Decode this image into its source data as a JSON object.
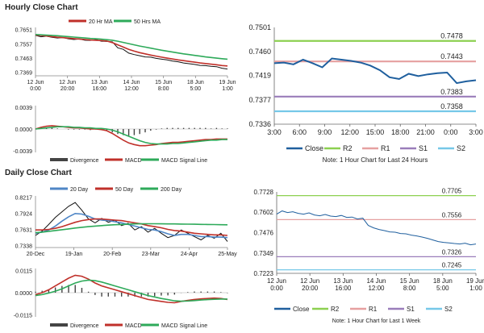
{
  "sections": {
    "hourly_title": "Hourly Close Chart",
    "daily_title": "Daily Close Chart"
  },
  "colors": {
    "close": "#1f5f9e",
    "r2": "#8cd050",
    "r1": "#e6a0a0",
    "s1": "#9a7dba",
    "s2": "#76c8e8",
    "ma_short": "#c0302a",
    "ma_long": "#2eaa5a",
    "ma_20day": "#4f86c6",
    "price": "#111111",
    "divergence": "#444444"
  },
  "chart_data": [
    {
      "id": "hourly-price",
      "type": "line",
      "legend": [
        "20 Hr MA",
        "50 Hrs MA"
      ],
      "y_ticks": [
        "0.7651",
        "0.7557",
        "0.7463",
        "0.7369"
      ],
      "ylim": [
        0.7345,
        0.7665
      ],
      "x_ticks": [
        "12 Jun\n0:00",
        "12 Jun\n20:00",
        "13 Jun\n16:00",
        "14 Jun\n12:00",
        "15 Jun\n8:00",
        "18 Jun\n5:00",
        "19 Jun\n1:00"
      ],
      "series": [
        {
          "name": "Price",
          "values": [
            0.7612,
            0.7603,
            0.7607,
            0.76,
            0.7595,
            0.7598,
            0.759,
            0.7585,
            0.7588,
            0.758,
            0.7579,
            0.7585,
            0.7574,
            0.7572,
            0.757,
            0.753,
            0.752,
            0.7495,
            0.7485,
            0.7478,
            0.747,
            0.7468,
            0.746,
            0.7455,
            0.745,
            0.7442,
            0.7438,
            0.743,
            0.7425,
            0.742,
            0.7414,
            0.7412,
            0.7408,
            0.7405,
            0.7395,
            0.739
          ]
        },
        {
          "name": "20 Hr MA",
          "values": [
            0.7615,
            0.7612,
            0.7608,
            0.7604,
            0.76,
            0.7597,
            0.7594,
            0.7591,
            0.7588,
            0.7585,
            0.7582,
            0.758,
            0.7578,
            0.7575,
            0.7565,
            0.755,
            0.7535,
            0.752,
            0.7508,
            0.7498,
            0.749,
            0.7482,
            0.7475,
            0.7468,
            0.7462,
            0.7456,
            0.745,
            0.7445,
            0.744,
            0.7435,
            0.743,
            0.7426,
            0.7422,
            0.7418,
            0.7413,
            0.741
          ]
        },
        {
          "name": "50 Hrs MA",
          "values": [
            0.7618,
            0.7616,
            0.7614,
            0.7612,
            0.761,
            0.7607,
            0.7604,
            0.7601,
            0.7598,
            0.7595,
            0.7592,
            0.759,
            0.7587,
            0.7584,
            0.758,
            0.7574,
            0.7566,
            0.7558,
            0.755,
            0.7542,
            0.7535,
            0.7528,
            0.7521,
            0.7514,
            0.7508,
            0.7502,
            0.7496,
            0.749,
            0.7485,
            0.748,
            0.7475,
            0.747,
            0.7466,
            0.7462,
            0.7458,
            0.7455
          ]
        }
      ]
    },
    {
      "id": "hourly-macd",
      "type": "line",
      "legend": [
        "Divergence",
        "MACD",
        "MACD Signal Line"
      ],
      "y_ticks": [
        "0.0039",
        "0.0000",
        "-0.0039"
      ],
      "ylim": [
        -0.0042,
        0.0042
      ],
      "series": [
        {
          "name": "MACD",
          "values": [
            0.0,
            0.0003,
            0.0005,
            0.0006,
            0.0005,
            0.0004,
            0.0003,
            0.0002,
            0.0002,
            0.0001,
            0.0,
            0.0,
            -0.0001,
            -0.0003,
            -0.0008,
            -0.0014,
            -0.002,
            -0.0025,
            -0.0028,
            -0.003,
            -0.003,
            -0.0029,
            -0.0028,
            -0.0026,
            -0.0025,
            -0.0024,
            -0.0024,
            -0.0023,
            -0.0022,
            -0.0021,
            -0.002,
            -0.0019,
            -0.0019,
            -0.0018,
            -0.0018,
            -0.0018
          ]
        },
        {
          "name": "MACD Signal Line",
          "values": [
            0.0,
            0.0001,
            0.0002,
            0.0003,
            0.0004,
            0.0004,
            0.0004,
            0.0003,
            0.0003,
            0.0002,
            0.0002,
            0.0001,
            0.0001,
            0.0,
            -0.0002,
            -0.0005,
            -0.0009,
            -0.0013,
            -0.0017,
            -0.0021,
            -0.0024,
            -0.0026,
            -0.0027,
            -0.0027,
            -0.0027,
            -0.0026,
            -0.0026,
            -0.0025,
            -0.0024,
            -0.0023,
            -0.0022,
            -0.0021,
            -0.002,
            -0.002,
            -0.0019,
            -0.0019
          ]
        }
      ]
    },
    {
      "id": "hourly-levels",
      "type": "line",
      "y_ticks": [
        "0.7501",
        "0.7460",
        "0.7419",
        "0.7377",
        "0.7336"
      ],
      "ylim": [
        0.7336,
        0.7501
      ],
      "x_ticks": [
        "3:00",
        "6:00",
        "9:00",
        "12:00",
        "15:00",
        "18:00",
        "21:00",
        "0:00",
        "3:00"
      ],
      "levels": [
        {
          "name": "R2",
          "value": 0.7478,
          "label": "0.7478"
        },
        {
          "name": "R1",
          "value": 0.7443,
          "label": "0.7443"
        },
        {
          "name": "S1",
          "value": 0.7383,
          "label": "0.7383"
        },
        {
          "name": "S2",
          "value": 0.7358,
          "label": "0.7358"
        }
      ],
      "series": [
        {
          "name": "Close",
          "values": [
            0.744,
            0.7441,
            0.7438,
            0.7446,
            0.744,
            0.7433,
            0.7448,
            0.7446,
            0.7444,
            0.7441,
            0.7436,
            0.7428,
            0.7416,
            0.7413,
            0.7422,
            0.7418,
            0.7421,
            0.7423,
            0.7424,
            0.7406,
            0.7409,
            0.7411
          ]
        }
      ],
      "legend": [
        "Close",
        "R2",
        "R1",
        "S1",
        "S2"
      ],
      "note": "Note: 1 Hour Chart for Last 24 Hours"
    },
    {
      "id": "daily-price",
      "type": "line",
      "legend": [
        "20 Day",
        "50 Day",
        "200 Day"
      ],
      "y_ticks": [
        "0.8217",
        "0.7924",
        "0.7631",
        "0.7338"
      ],
      "ylim": [
        0.73,
        0.824
      ],
      "x_ticks": [
        "20-Dec",
        "19-Jan",
        "20-Feb",
        "23-Mar",
        "24-Apr",
        "25-May"
      ],
      "series": [
        {
          "name": "Price",
          "values": [
            0.752,
            0.76,
            0.772,
            0.785,
            0.795,
            0.805,
            0.812,
            0.798,
            0.782,
            0.775,
            0.783,
            0.776,
            0.78,
            0.77,
            0.774,
            0.762,
            0.768,
            0.758,
            0.765,
            0.756,
            0.748,
            0.752,
            0.762,
            0.756,
            0.75,
            0.744,
            0.752,
            0.747,
            0.756,
            0.741
          ]
        },
        {
          "name": "20 Day",
          "values": [
            0.756,
            0.758,
            0.762,
            0.769,
            0.778,
            0.786,
            0.792,
            0.791,
            0.787,
            0.782,
            0.78,
            0.779,
            0.777,
            0.775,
            0.772,
            0.769,
            0.766,
            0.763,
            0.762,
            0.759,
            0.755,
            0.752,
            0.754,
            0.754,
            0.752,
            0.75,
            0.75,
            0.749,
            0.749,
            0.748
          ]
        },
        {
          "name": "50 Day",
          "values": [
            0.762,
            0.762,
            0.763,
            0.765,
            0.768,
            0.772,
            0.776,
            0.779,
            0.781,
            0.782,
            0.782,
            0.781,
            0.78,
            0.779,
            0.777,
            0.775,
            0.773,
            0.77,
            0.768,
            0.766,
            0.763,
            0.761,
            0.76,
            0.758,
            0.756,
            0.755,
            0.754,
            0.753,
            0.753,
            0.752
          ]
        },
        {
          "name": "200 Day",
          "values": [
            0.757,
            0.758,
            0.7595,
            0.761,
            0.7625,
            0.764,
            0.7655,
            0.7668,
            0.768,
            0.769,
            0.77,
            0.7708,
            0.7715,
            0.772,
            0.7725,
            0.773,
            0.7732,
            0.7733,
            0.7733,
            0.7732,
            0.7731,
            0.773,
            0.7728,
            0.7726,
            0.7724,
            0.7722,
            0.772,
            0.7718,
            0.7716,
            0.7714
          ]
        }
      ]
    },
    {
      "id": "daily-macd",
      "type": "line",
      "legend": [
        "Divergence",
        "MACD",
        "MACD Signal Line"
      ],
      "y_ticks": [
        "0.0115",
        "0.0000",
        "-0.0115"
      ],
      "ylim": [
        -0.0125,
        0.0125
      ],
      "series": [
        {
          "name": "MACD",
          "values": [
            -0.001,
            0.0,
            0.0015,
            0.0035,
            0.0055,
            0.0075,
            0.009,
            0.0085,
            0.007,
            0.005,
            0.0035,
            0.0025,
            0.0015,
            0.0005,
            -0.0005,
            -0.0015,
            -0.0025,
            -0.0035,
            -0.004,
            -0.0045,
            -0.005,
            -0.0052,
            -0.0045,
            -0.004,
            -0.0035,
            -0.0032,
            -0.003,
            -0.0028,
            -0.003,
            -0.0035
          ]
        },
        {
          "name": "MACD Signal Line",
          "values": [
            -0.0015,
            -0.001,
            -0.0002,
            0.0008,
            0.002,
            0.0035,
            0.005,
            0.006,
            0.0065,
            0.0062,
            0.0055,
            0.0045,
            0.0035,
            0.0025,
            0.0015,
            0.0005,
            -0.0005,
            -0.0015,
            -0.0022,
            -0.003,
            -0.0036,
            -0.0042,
            -0.0044,
            -0.0043,
            -0.0041,
            -0.0038,
            -0.0036,
            -0.0034,
            -0.0033,
            -0.0033
          ]
        }
      ]
    },
    {
      "id": "daily-levels",
      "type": "line",
      "y_ticks": [
        "0.7728",
        "0.7602",
        "0.7476",
        "0.7349",
        "0.7223"
      ],
      "ylim": [
        0.7223,
        0.7728
      ],
      "x_ticks": [
        "12 Jun\n0:00",
        "12 Jun\n20:00",
        "13 Jun\n16:00",
        "14 Jun\n12:00",
        "15 Jun\n8:00",
        "18 Jun\n5:00",
        "19 Jun\n1:00"
      ],
      "levels": [
        {
          "name": "R2",
          "value": 0.7705,
          "label": "0.7705"
        },
        {
          "name": "R1",
          "value": 0.7556,
          "label": "0.7556"
        },
        {
          "name": "S1",
          "value": 0.7326,
          "label": "0.7326"
        },
        {
          "name": "S2",
          "value": 0.7245,
          "label": "0.7245"
        }
      ],
      "series": [
        {
          "name": "Close",
          "values": [
            0.759,
            0.761,
            0.76,
            0.7605,
            0.7595,
            0.759,
            0.7598,
            0.7585,
            0.758,
            0.7588,
            0.7578,
            0.7575,
            0.7582,
            0.757,
            0.7572,
            0.756,
            0.7565,
            0.752,
            0.7505,
            0.7495,
            0.7488,
            0.748,
            0.7478,
            0.747,
            0.7468,
            0.746,
            0.7455,
            0.7448,
            0.744,
            0.743,
            0.742,
            0.7415,
            0.7412,
            0.7408,
            0.7405,
            0.741,
            0.74,
            0.7405
          ]
        }
      ],
      "legend": [
        "Close",
        "R2",
        "R1",
        "S1",
        "S2"
      ],
      "note": "Note: 1 Hour Chart for Last 1 Week"
    }
  ]
}
